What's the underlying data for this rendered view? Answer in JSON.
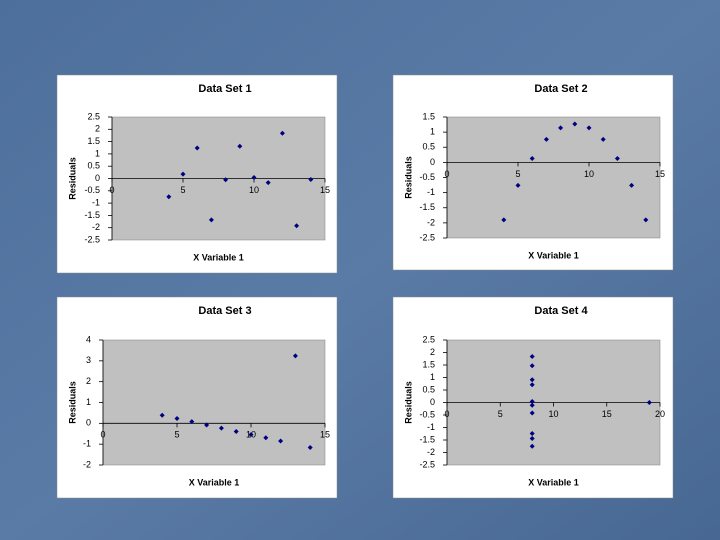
{
  "chart_data": [
    {
      "type": "scatter",
      "title": "Data Set 1",
      "x_label": "X Variable 1",
      "y_label": "Residuals",
      "color": "#000080",
      "x": [
        10,
        8,
        13,
        9,
        11,
        14,
        6,
        4,
        12,
        7,
        5
      ],
      "values": [
        0.04,
        -0.05,
        -1.92,
        1.31,
        -0.17,
        -0.04,
        1.24,
        -0.74,
        1.84,
        -1.68,
        0.18
      ],
      "xlim": [
        0,
        15
      ],
      "xticks": [
        0,
        5,
        10,
        15
      ],
      "ylim": [
        -2.5,
        2.5
      ],
      "yticks": [
        -2.5,
        -2,
        -1.5,
        -1,
        -0.5,
        0,
        0.5,
        1,
        1.5,
        2,
        2.5
      ]
    },
    {
      "type": "scatter",
      "title": "Data Set 2",
      "x_label": "X Variable 1",
      "y_label": "Residuals",
      "color": "#000080",
      "x": [
        10,
        8,
        13,
        9,
        11,
        14,
        6,
        4,
        12,
        7,
        5
      ],
      "values": [
        1.14,
        1.14,
        -0.76,
        1.27,
        0.76,
        -1.9,
        0.13,
        -1.9,
        0.13,
        0.76,
        -0.76
      ],
      "xlim": [
        0,
        15
      ],
      "xticks": [
        0,
        5,
        10,
        15
      ],
      "ylim": [
        -2.5,
        1.5
      ],
      "yticks": [
        -2.5,
        -2,
        -1.5,
        -1,
        -0.5,
        0,
        0.5,
        1,
        1.5
      ]
    },
    {
      "type": "scatter",
      "title": "Data Set 3",
      "x_label": "X Variable 1",
      "y_label": "Residuals",
      "color": "#000080",
      "x": [
        10,
        8,
        13,
        9,
        11,
        14,
        6,
        4,
        12,
        7,
        5
      ],
      "values": [
        -0.54,
        -0.23,
        3.24,
        -0.39,
        -0.69,
        -1.16,
        0.08,
        0.39,
        -0.85,
        -0.08,
        0.23
      ],
      "xlim": [
        0,
        15
      ],
      "xticks": [
        0,
        5,
        10,
        15
      ],
      "ylim": [
        -2,
        4
      ],
      "yticks": [
        -2,
        -1,
        0,
        1,
        2,
        3,
        4
      ]
    },
    {
      "type": "scatter",
      "title": "Data Set 4",
      "x_label": "X Variable 1",
      "y_label": "Residuals",
      "color": "#000080",
      "x": [
        8,
        8,
        8,
        8,
        8,
        8,
        8,
        19,
        8,
        8,
        8
      ],
      "values": [
        -0.42,
        -1.24,
        0.71,
        1.84,
        1.47,
        0.04,
        -1.75,
        0,
        -1.44,
        0.91,
        -0.11
      ],
      "xlim": [
        0,
        20
      ],
      "xticks": [
        0,
        5,
        10,
        15,
        20
      ],
      "ylim": [
        -2.5,
        2.5
      ],
      "yticks": [
        -2.5,
        -2,
        -1.5,
        -1,
        -0.5,
        0,
        0.5,
        1,
        1.5,
        2,
        2.5
      ]
    }
  ]
}
